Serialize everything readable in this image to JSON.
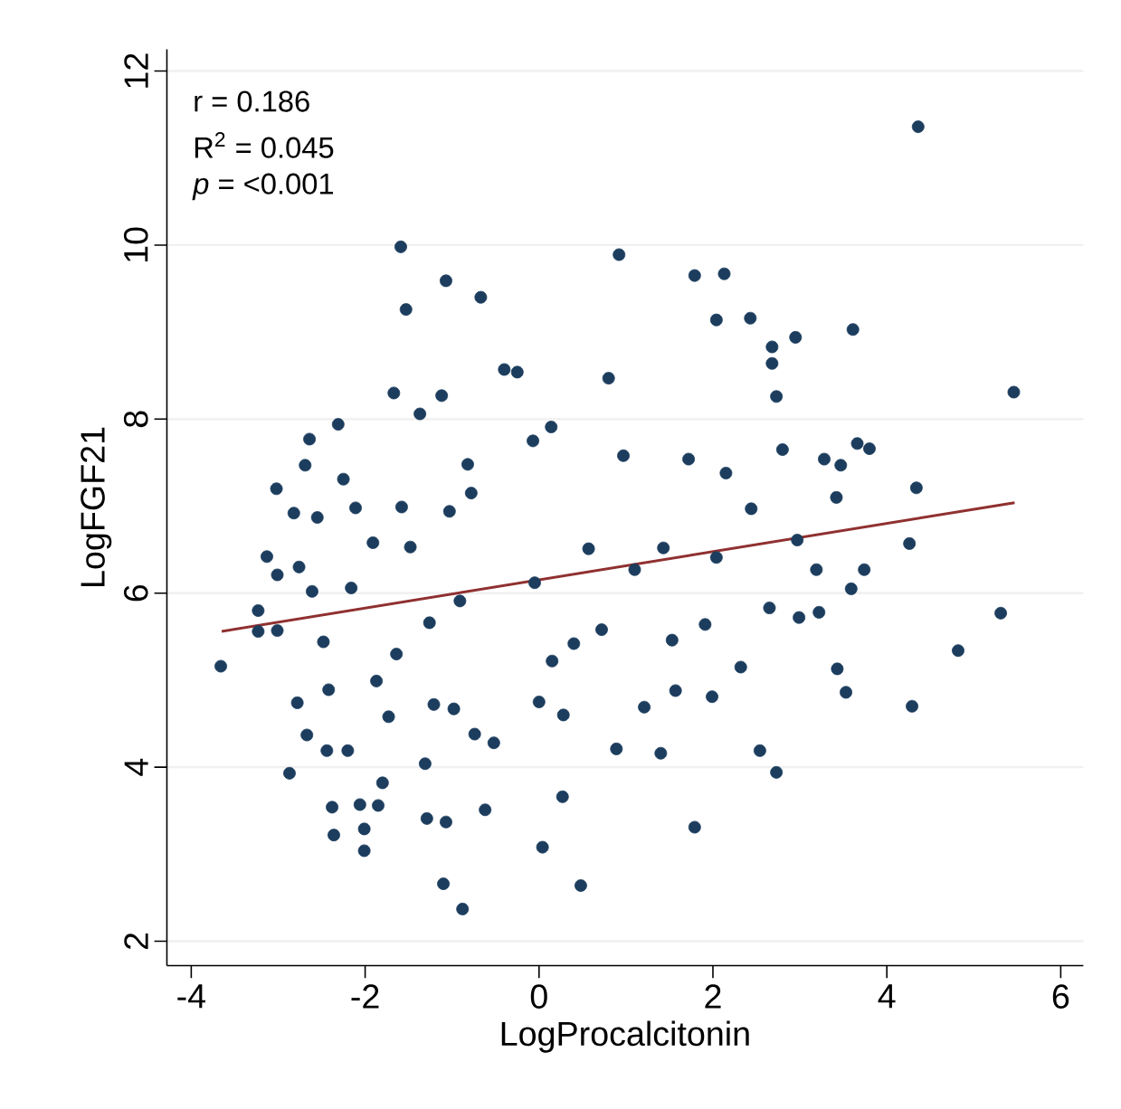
{
  "chart_data": {
    "type": "scatter",
    "xlabel": "LogProcalcitonin",
    "ylabel": "LogFGF21",
    "xlim": [
      -4.28,
      6.26
    ],
    "ylim": [
      1.72,
      12.25
    ],
    "xticks": [
      -4,
      -2,
      0,
      2,
      4,
      6
    ],
    "yticks": [
      2,
      4,
      6,
      8,
      10,
      12
    ],
    "grid": "y",
    "annotations": [
      "r = 0.186",
      "R$^{2}$ = 0.045",
      "*p* = <0.001"
    ],
    "series": [
      {
        "marker": "circle",
        "color": "#1c3d5e",
        "x": [
          -3.66,
          -3.23,
          -3.23,
          -3.13,
          -3.02,
          -3.01,
          -3.01,
          -2.87,
          -2.82,
          -2.78,
          -2.76,
          -2.69,
          -2.67,
          -2.64,
          -2.61,
          -2.55,
          -2.48,
          -2.44,
          -2.42,
          -2.38,
          -2.36,
          -2.31,
          -2.25,
          -2.2,
          -2.16,
          -2.11,
          -2.06,
          -2.01,
          -2.01,
          -1.91,
          -1.87,
          -1.85,
          -1.8,
          -1.73,
          -1.67,
          -1.64,
          -1.59,
          -1.58,
          -1.53,
          -1.48,
          -1.37,
          -1.31,
          -1.29,
          -1.26,
          -1.21,
          -1.12,
          -1.1,
          -1.07,
          -1.07,
          -1.03,
          -0.98,
          -0.91,
          -0.88,
          -0.82,
          -0.78,
          -0.74,
          -0.67,
          -0.62,
          -0.52,
          -0.4,
          -0.25,
          -0.07,
          -0.05,
          0.0,
          0.04,
          0.14,
          0.15,
          0.27,
          0.28,
          0.4,
          0.48,
          0.57,
          0.72,
          0.8,
          0.89,
          0.92,
          0.97,
          1.1,
          1.21,
          1.4,
          1.43,
          1.53,
          1.57,
          1.72,
          1.79,
          1.79,
          1.91,
          1.99,
          2.04,
          2.04,
          2.13,
          2.15,
          2.32,
          2.43,
          2.44,
          2.54,
          2.65,
          2.68,
          2.68,
          2.73,
          2.73,
          2.8,
          2.95,
          2.97,
          2.99,
          3.19,
          3.22,
          3.28,
          3.42,
          3.43,
          3.47,
          3.53,
          3.59,
          3.61,
          3.66,
          3.74,
          3.8,
          4.26,
          4.29,
          4.34,
          4.36,
          4.82,
          5.31,
          5.46
        ],
        "values": [
          5.16,
          5.8,
          5.56,
          6.42,
          7.2,
          6.21,
          5.57,
          3.93,
          6.92,
          4.74,
          6.3,
          7.47,
          4.37,
          7.77,
          6.02,
          6.87,
          5.44,
          4.19,
          4.89,
          3.54,
          3.22,
          7.94,
          7.31,
          4.19,
          6.06,
          6.98,
          3.57,
          3.29,
          3.04,
          6.58,
          4.99,
          3.56,
          3.82,
          4.58,
          8.3,
          5.3,
          9.98,
          6.99,
          9.26,
          6.53,
          8.06,
          4.04,
          3.41,
          5.66,
          4.72,
          8.27,
          2.66,
          9.59,
          3.37,
          6.94,
          4.67,
          5.91,
          2.37,
          7.48,
          7.15,
          4.38,
          9.4,
          3.51,
          4.28,
          8.57,
          8.54,
          7.75,
          6.12,
          4.75,
          3.08,
          7.91,
          5.22,
          3.66,
          4.6,
          5.42,
          2.64,
          6.51,
          5.58,
          8.47,
          4.21,
          9.89,
          7.58,
          6.27,
          4.69,
          4.16,
          6.52,
          5.46,
          4.88,
          7.54,
          9.65,
          3.31,
          5.64,
          4.81,
          6.41,
          9.14,
          9.67,
          7.38,
          5.15,
          9.16,
          6.97,
          4.19,
          5.83,
          8.83,
          8.64,
          8.26,
          3.94,
          7.65,
          8.94,
          6.61,
          5.72,
          6.27,
          5.78,
          7.54,
          7.1,
          5.13,
          7.47,
          4.86,
          6.05,
          9.03,
          7.72,
          6.27,
          7.66,
          6.57,
          4.7,
          7.21,
          11.36,
          5.34,
          5.77,
          8.31
        ]
      },
      {
        "type": "line",
        "marker": "none",
        "color": "#903030",
        "x": [
          -3.65,
          5.47
        ],
        "values": [
          5.56,
          7.04
        ]
      }
    ]
  }
}
